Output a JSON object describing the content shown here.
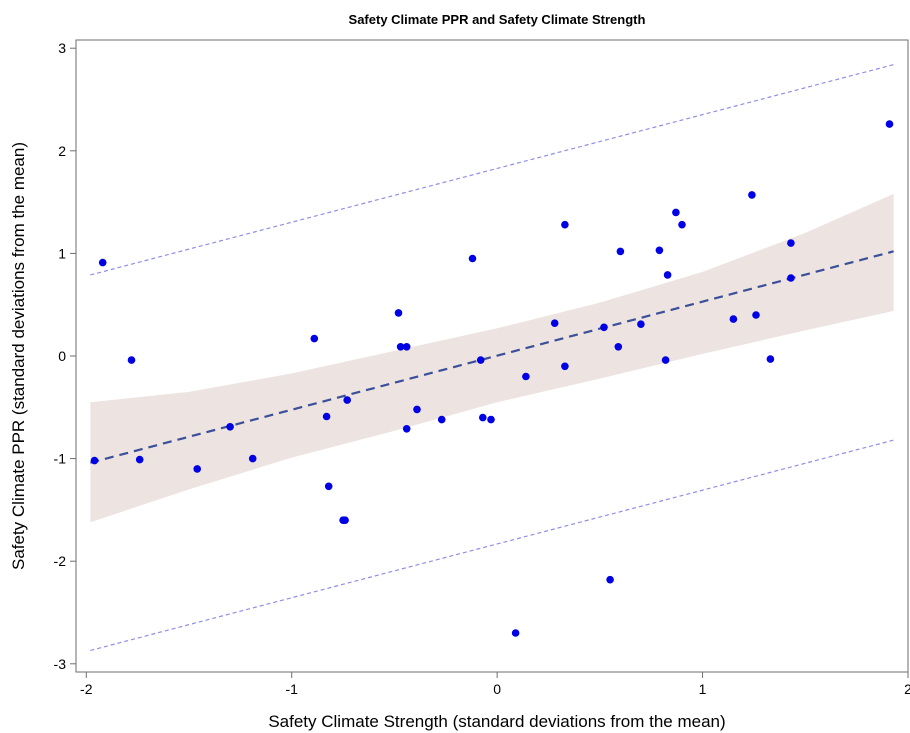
{
  "chart_data": {
    "type": "scatter",
    "title": "Safety Climate PPR and Safety Climate Strength",
    "xlabel": "Safety Climate Strength (standard deviations from the mean)",
    "ylabel": "Safety Climate PPR (standard deviations from the mean)",
    "xlim": [
      -2.05,
      2.0
    ],
    "ylim": [
      -3.08,
      3.08
    ],
    "x_ticks": [
      -2,
      -1,
      0,
      1,
      2
    ],
    "x_tick_labels": [
      "-2",
      "-1",
      "0",
      "1",
      "2"
    ],
    "y_ticks": [
      -3,
      -2,
      -1,
      0,
      1,
      2,
      3
    ],
    "y_tick_labels": [
      "-3",
      "-2",
      "-1",
      "0",
      "1",
      "2",
      "3"
    ],
    "grid": false,
    "colors": {
      "points": "#0000e6",
      "fit_line": "#3b4f9a",
      "confidence_band": "#ede4e1",
      "prediction_limits": "#8f8fe6"
    },
    "points": {
      "x": [
        -1.96,
        -1.92,
        -1.78,
        -1.74,
        -1.46,
        -1.3,
        -1.19,
        -0.89,
        -0.83,
        -0.82,
        -0.75,
        -0.74,
        -0.73,
        -0.48,
        -0.47,
        -0.44,
        -0.44,
        -0.39,
        -0.27,
        -0.12,
        -0.08,
        -0.07,
        -0.03,
        0.09,
        0.14,
        0.28,
        0.33,
        0.33,
        0.52,
        0.55,
        0.59,
        0.6,
        0.7,
        0.79,
        0.82,
        0.83,
        0.87,
        0.9,
        1.15,
        1.24,
        1.26,
        1.33,
        1.43,
        1.43,
        1.91
      ],
      "y": [
        -1.02,
        0.91,
        -0.04,
        -1.01,
        -1.1,
        -0.69,
        -1.0,
        0.17,
        -0.59,
        -1.27,
        -1.6,
        -1.6,
        -0.43,
        0.42,
        0.09,
        0.09,
        -0.71,
        -0.52,
        -0.62,
        0.95,
        -0.04,
        -0.6,
        -0.62,
        -2.7,
        -0.2,
        0.32,
        -0.1,
        1.28,
        0.28,
        -2.18,
        0.09,
        1.02,
        0.31,
        1.03,
        -0.04,
        0.79,
        1.4,
        1.28,
        0.36,
        1.57,
        0.4,
        -0.03,
        1.1,
        0.76,
        2.26
      ]
    },
    "fit_line": {
      "x": [
        -1.98,
        1.93
      ],
      "y": [
        -1.04,
        1.02
      ]
    },
    "confidence_band": {
      "x": [
        -1.98,
        -1.5,
        -1.0,
        -0.5,
        0.0,
        0.5,
        1.0,
        1.5,
        1.93
      ],
      "upper": [
        -0.45,
        -0.35,
        -0.17,
        0.05,
        0.27,
        0.52,
        0.82,
        1.2,
        1.58
      ],
      "lower": [
        -1.62,
        -1.3,
        -0.99,
        -0.73,
        -0.45,
        -0.22,
        0.02,
        0.25,
        0.44
      ]
    },
    "prediction_limits": {
      "x": [
        -1.98,
        1.93
      ],
      "upper": [
        0.79,
        2.84
      ],
      "lower": [
        -2.87,
        -0.82
      ]
    }
  }
}
